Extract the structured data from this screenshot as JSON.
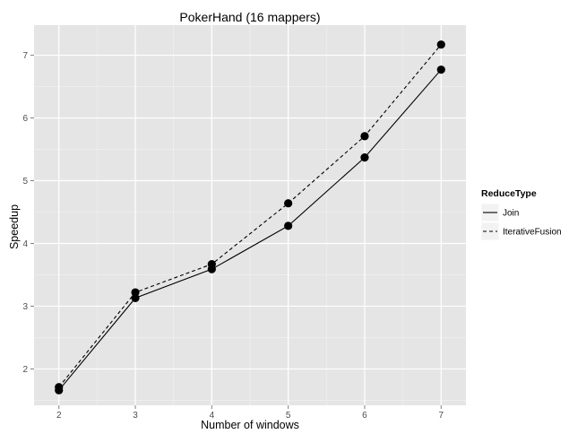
{
  "chart_data": {
    "type": "line",
    "title": "PokerHand (16 mappers)",
    "xlabel": "Number of windows",
    "ylabel": "Speedup",
    "x": [
      2,
      3,
      4,
      5,
      6,
      7
    ],
    "xticks": [
      "2",
      "3",
      "4",
      "5",
      "6",
      "7"
    ],
    "yticks": [
      "2",
      "3",
      "4",
      "5",
      "6",
      "7"
    ],
    "xlim": [
      1.675,
      7.325
    ],
    "ylim": [
      1.42,
      7.48
    ],
    "grid": true,
    "legend_position": "right",
    "legend_title": "ReduceType",
    "series": [
      {
        "name": "Join",
        "line_style": "solid",
        "values": [
          1.66,
          3.13,
          3.59,
          4.28,
          5.37,
          6.77
        ]
      },
      {
        "name": "IterativeFusion",
        "line_style": "dashed",
        "values": [
          1.71,
          3.22,
          3.67,
          4.64,
          5.71,
          7.17
        ]
      }
    ],
    "colors": {
      "panel": "#e5e5e5",
      "grid_major": "#ffffff",
      "grid_minor": "#f2f2f2",
      "line": "#000000",
      "tick_text": "#4d4d4d"
    }
  }
}
